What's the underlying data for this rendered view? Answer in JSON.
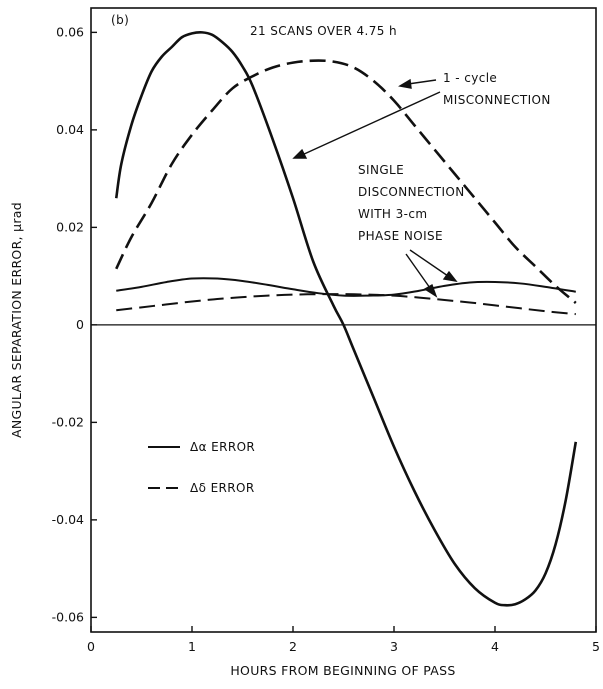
{
  "chart_data": {
    "type": "line",
    "panel_label": "(b)",
    "xlabel": "HOURS FROM BEGINNING OF PASS",
    "ylabel": "ANGULAR SEPARATION ERROR, μrad",
    "xlim": [
      0,
      5
    ],
    "ylim": [
      -0.063,
      0.065
    ],
    "x_ticks": [
      0,
      1,
      2,
      3,
      4,
      5
    ],
    "x_tick_labels": [
      "0",
      "1",
      "2",
      "3",
      "4",
      "5"
    ],
    "y_ticks": [
      0.06,
      0.04,
      0.02,
      0,
      -0.02,
      -0.04,
      -0.06
    ],
    "y_tick_labels": [
      "0.06",
      "0.04",
      "0.02",
      "0",
      "-0.02",
      "-0.04",
      "-0.06"
    ],
    "zero_line": true,
    "grid": false,
    "legend_position": "lower-left",
    "annotations": {
      "scans": "21 SCANS OVER 4.75 h",
      "misconnection": [
        "1 - cycle",
        "MISCONNECTION"
      ],
      "disconnection": [
        "SINGLE",
        "DISCONNECTION",
        "WITH 3-cm",
        "PHASE NOISE"
      ]
    },
    "legend": [
      {
        "label": "Δα ERROR",
        "style": "solid"
      },
      {
        "label": "Δδ ERROR",
        "style": "dashed"
      }
    ],
    "series": [
      {
        "group": "1 - cycle MISCONNECTION",
        "legend_label": "Δα ERROR",
        "style": "solid",
        "x": [
          0.25,
          0.3,
          0.4,
          0.5,
          0.6,
          0.7,
          0.8,
          0.9,
          1.0,
          1.1,
          1.2,
          1.3,
          1.4,
          1.5,
          1.6,
          1.8,
          2.0,
          2.2,
          2.4,
          2.5,
          2.6,
          2.8,
          3.0,
          3.2,
          3.4,
          3.6,
          3.8,
          4.0,
          4.1,
          4.2,
          4.3,
          4.4,
          4.5,
          4.6,
          4.7,
          4.8
        ],
        "y": [
          0.026,
          0.033,
          0.041,
          0.047,
          0.052,
          0.055,
          0.057,
          0.059,
          0.0598,
          0.06,
          0.0595,
          0.058,
          0.056,
          0.053,
          0.049,
          0.038,
          0.026,
          0.013,
          0.004,
          0.0,
          -0.005,
          -0.015,
          -0.025,
          -0.034,
          -0.042,
          -0.049,
          -0.054,
          -0.057,
          -0.0575,
          -0.0573,
          -0.0563,
          -0.0545,
          -0.051,
          -0.045,
          -0.036,
          -0.024
        ]
      },
      {
        "group": "1 - cycle MISCONNECTION",
        "legend_label": "Δδ ERROR",
        "style": "dashed",
        "x": [
          0.25,
          0.4,
          0.6,
          0.8,
          1.0,
          1.2,
          1.4,
          1.6,
          1.8,
          2.0,
          2.2,
          2.4,
          2.6,
          2.8,
          3.0,
          3.2,
          3.4,
          3.6,
          3.8,
          4.0,
          4.2,
          4.4,
          4.6,
          4.8
        ],
        "y": [
          0.0115,
          0.018,
          0.025,
          0.033,
          0.039,
          0.044,
          0.0485,
          0.051,
          0.0528,
          0.0538,
          0.0542,
          0.054,
          0.0528,
          0.05,
          0.046,
          0.041,
          0.036,
          0.031,
          0.026,
          0.021,
          0.016,
          0.012,
          0.008,
          0.0045
        ]
      },
      {
        "group": "SINGLE DISCONNECTION WITH 3-cm PHASE NOISE",
        "legend_label": "Δα ERROR",
        "style": "solid",
        "x": [
          0.25,
          0.5,
          0.75,
          1.0,
          1.25,
          1.5,
          1.75,
          2.0,
          2.25,
          2.5,
          2.75,
          3.0,
          3.25,
          3.5,
          3.75,
          4.0,
          4.25,
          4.5,
          4.8
        ],
        "y": [
          0.007,
          0.0078,
          0.0088,
          0.0095,
          0.0095,
          0.009,
          0.0082,
          0.0073,
          0.0065,
          0.006,
          0.006,
          0.0062,
          0.007,
          0.008,
          0.0087,
          0.0088,
          0.0085,
          0.0078,
          0.0068
        ]
      },
      {
        "group": "SINGLE DISCONNECTION WITH 3-cm PHASE NOISE",
        "legend_label": "Δδ ERROR",
        "style": "dashed",
        "x": [
          0.25,
          0.5,
          0.75,
          1.0,
          1.25,
          1.5,
          1.75,
          2.0,
          2.25,
          2.5,
          2.75,
          3.0,
          3.25,
          3.5,
          3.75,
          4.0,
          4.25,
          4.5,
          4.8
        ],
        "y": [
          0.003,
          0.0036,
          0.0042,
          0.0048,
          0.0053,
          0.0057,
          0.006,
          0.0062,
          0.0063,
          0.0063,
          0.0062,
          0.006,
          0.0056,
          0.0051,
          0.0046,
          0.004,
          0.0034,
          0.0028,
          0.0022
        ]
      }
    ]
  }
}
